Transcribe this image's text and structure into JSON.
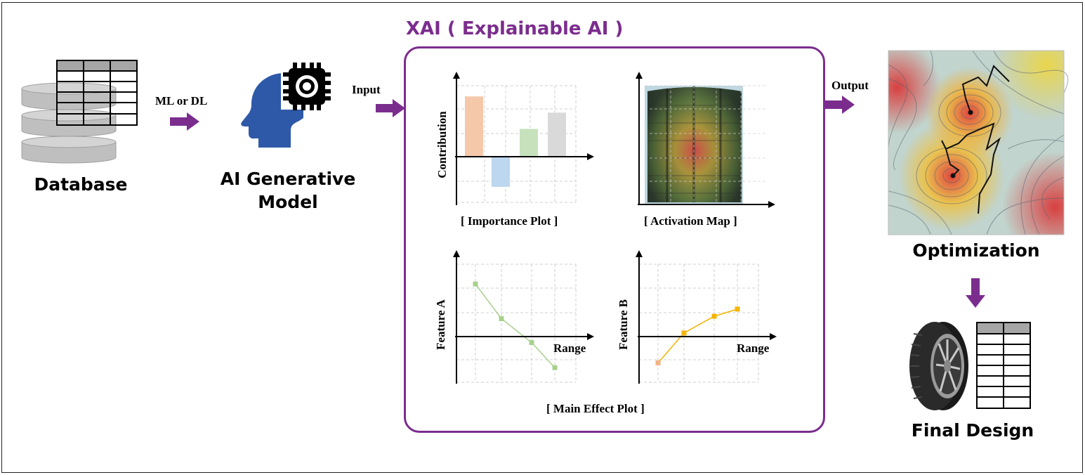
{
  "labels": {
    "database": "Database",
    "ml_or_dl": "ML or DL",
    "model_line1": "AI Generative",
    "model_line2": "Model",
    "input": "Input",
    "xai_title": "XAI ( Explainable AI )",
    "output": "Output",
    "optimization": "Optimization",
    "final_design": "Final Design"
  },
  "importance_plot": {
    "caption": "[ Importance Plot ]",
    "ylabel": "Contribution",
    "bars": [
      {
        "value": 2.6,
        "color": "#f5c8aa"
      },
      {
        "value": -1.3,
        "color": "#bcd7ee"
      },
      {
        "value": 1.2,
        "color": "#c6e2bc"
      },
      {
        "value": 1.9,
        "color": "#d9d9d9"
      }
    ]
  },
  "activation_map": {
    "caption": "[ Activation Map ]"
  },
  "main_effect": {
    "caption": "[ Main Effect Plot ]",
    "feature_a": {
      "ylabel": "Feature A",
      "xlabel": "Range",
      "color": "#a8d08d",
      "points": [
        2.2,
        0.75,
        -0.25,
        -1.3
      ]
    },
    "feature_b": {
      "ylabel": "Feature B",
      "xlabel": "Range",
      "color": "#f4b400",
      "first_color": "#f4b183",
      "points": [
        -1.1,
        0.15,
        0.85,
        1.15
      ]
    }
  },
  "colors": {
    "accent": "#7b2d8e",
    "arrow": "#7b2d8e",
    "head": "#2e59a8",
    "disk": "#bfbfbf",
    "table_header": "#a6a6a6"
  }
}
